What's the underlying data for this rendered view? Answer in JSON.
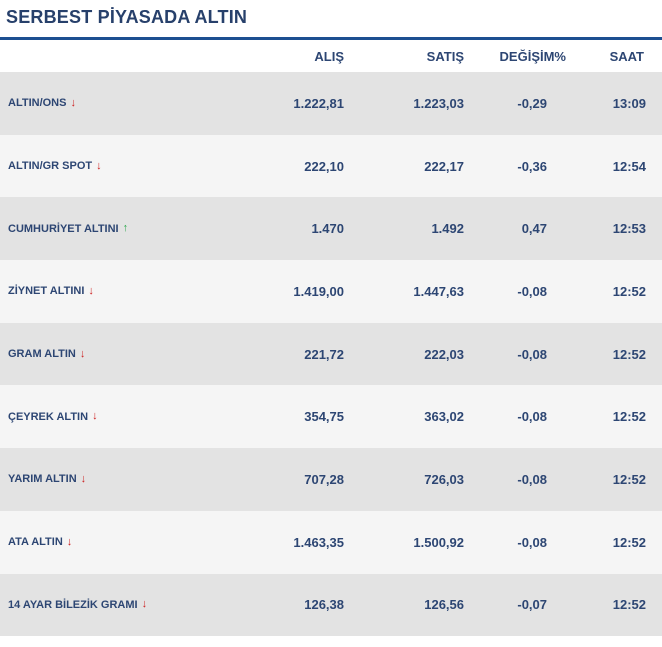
{
  "title": "SERBEST PİYASADA ALTIN",
  "columns": {
    "alis": "ALIŞ",
    "satis": "SATIŞ",
    "degisim": "DEĞİŞİM%",
    "saat": "SAAT"
  },
  "rows": [
    {
      "name": "ALTIN/ONS",
      "trend": "down",
      "alis": "1.222,81",
      "satis": "1.223,03",
      "degisim": "-0,29",
      "saat": "13:09"
    },
    {
      "name": "ALTIN/GR SPOT",
      "trend": "down",
      "alis": "222,10",
      "satis": "222,17",
      "degisim": "-0,36",
      "saat": "12:54"
    },
    {
      "name": "CUMHURİYET ALTINI",
      "trend": "up",
      "alis": "1.470",
      "satis": "1.492",
      "degisim": "0,47",
      "saat": "12:53"
    },
    {
      "name": "ZİYNET ALTINI",
      "trend": "down",
      "alis": "1.419,00",
      "satis": "1.447,63",
      "degisim": "-0,08",
      "saat": "12:52"
    },
    {
      "name": "GRAM ALTIN",
      "trend": "down",
      "alis": "221,72",
      "satis": "222,03",
      "degisim": "-0,08",
      "saat": "12:52"
    },
    {
      "name": "ÇEYREK ALTIN",
      "trend": "down",
      "alis": "354,75",
      "satis": "363,02",
      "degisim": "-0,08",
      "saat": "12:52"
    },
    {
      "name": "YARIM ALTIN",
      "trend": "down",
      "alis": "707,28",
      "satis": "726,03",
      "degisim": "-0,08",
      "saat": "12:52"
    },
    {
      "name": "ATA ALTIN",
      "trend": "down",
      "alis": "1.463,35",
      "satis": "1.500,92",
      "degisim": "-0,08",
      "saat": "12:52"
    },
    {
      "name": "14 AYAR BİLEZİK GRAMI",
      "trend": "down",
      "alis": "126,38",
      "satis": "126,56",
      "degisim": "-0,07",
      "saat": "12:52"
    }
  ],
  "colors": {
    "title": "#27406b",
    "accent_line": "#1d4f91",
    "down_arrow": "#cc1f1f",
    "up_arrow": "#2fa84f",
    "row_shaded": "#e3e3e3",
    "row_light": "#f5f5f5"
  }
}
